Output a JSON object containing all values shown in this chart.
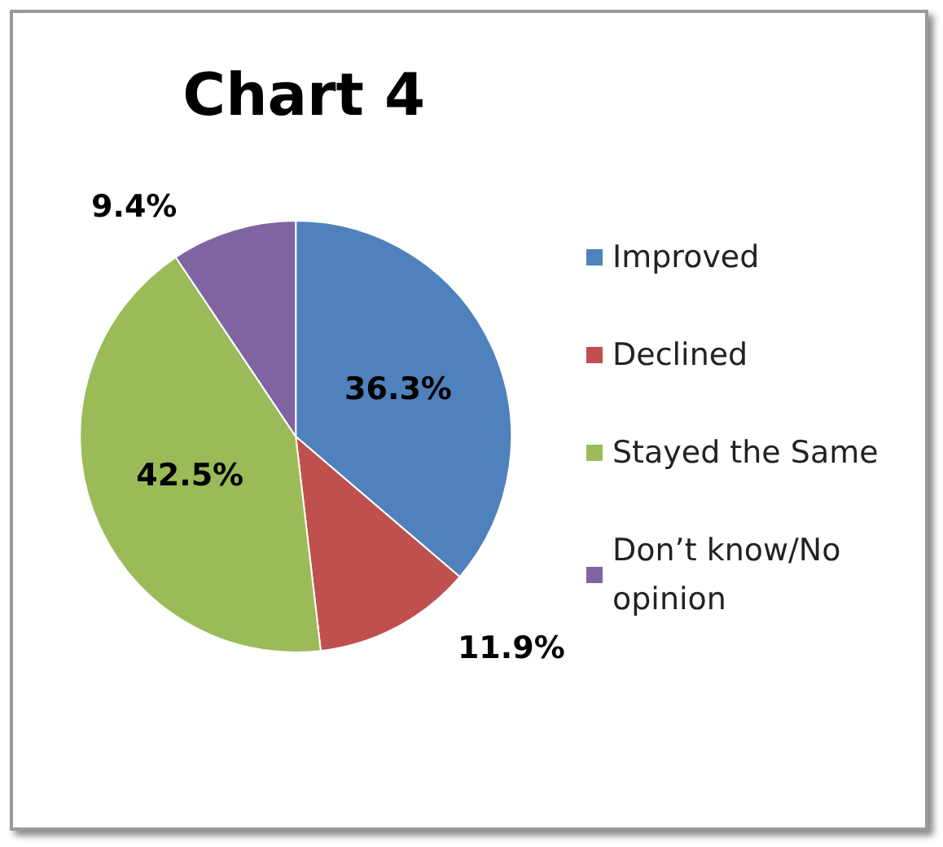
{
  "chart_data": {
    "type": "pie",
    "title": "Chart 4",
    "categories": [
      "Improved",
      "Declined",
      "Stayed the Same",
      "Don’t know/No opinion"
    ],
    "values": [
      36.3,
      11.9,
      42.5,
      9.4
    ],
    "colors": [
      "#4f81bd",
      "#c0504d",
      "#9bbb59",
      "#8064a2"
    ],
    "value_labels": [
      "36.3%",
      "11.9%",
      "42.5%",
      "9.4%"
    ],
    "legend": "right"
  }
}
